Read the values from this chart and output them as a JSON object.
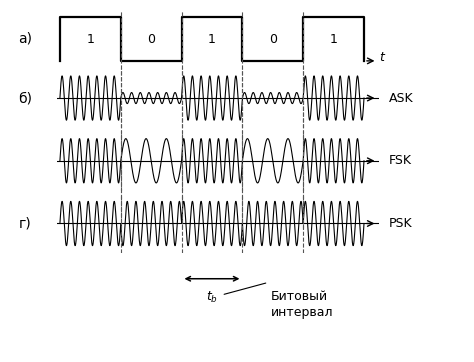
{
  "bits": [
    1,
    0,
    1,
    0,
    1
  ],
  "n_bits": 5,
  "bit_duration": 1.0,
  "carrier_freq_high": 7.0,
  "carrier_freq_low": 3.0,
  "psk_freq": 7.0,
  "ask_amp_high": 1.0,
  "ask_amp_low": 0.25,
  "label_a": "а)",
  "label_b": "б)",
  "label_g": "г)",
  "label_ask": "ASK",
  "label_fsk": "FSK",
  "label_psk": "PSK",
  "label_t": "t",
  "label_tb": "$t_b$",
  "label_interval": "Битовый\nинтервал",
  "line_color": "#000000",
  "bg_color": "#ffffff",
  "dashed_color": "#555555",
  "samples": 3000
}
